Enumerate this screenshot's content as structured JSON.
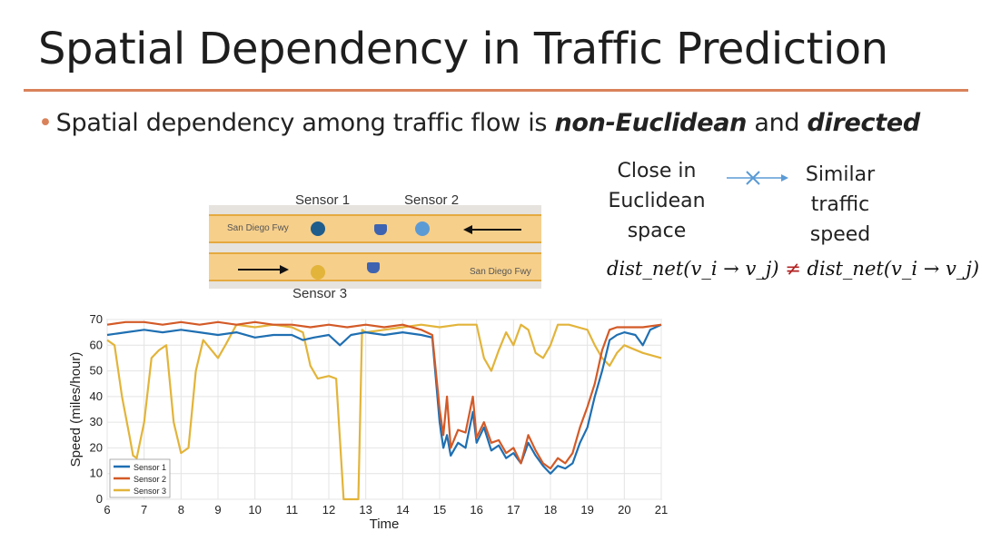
{
  "slide": {
    "title": "Spatial Dependency in Traffic Prediction",
    "bullet": {
      "prefix": "Spatial dependency among traffic flow  is ",
      "emph1": "non-Euclidean",
      "middle": " and ",
      "emph2": "directed"
    },
    "left_box": {
      "line1": "Close in",
      "line2": "Euclidean",
      "line3": "space"
    },
    "right_box": {
      "line1": "Similar",
      "line2": "traffic",
      "line3": "speed"
    },
    "formula": {
      "lhs": "dist_net(v_i → v_j)",
      "neq": "≠",
      "rhs": "dist_net(v_i → v_j)"
    }
  },
  "map": {
    "road_label": "San Diego Fwy",
    "sensor_labels": [
      "Sensor 1",
      "Sensor 2",
      "Sensor 3"
    ],
    "sensor_colors": [
      "#1f5d8c",
      "#5b9bd5",
      "#e2b43a"
    ]
  },
  "colors": {
    "accent_rule": "#d9825a",
    "road": "#f6cf8b",
    "arrow_blue": "#5b9bd5",
    "neq_red": "#b22222"
  },
  "chart_data": {
    "type": "line",
    "xlabel": "Time",
    "ylabel": "Speed (miles/hour)",
    "xlim": [
      6,
      21
    ],
    "ylim": [
      0,
      70
    ],
    "xticks": [
      6,
      7,
      8,
      9,
      10,
      11,
      12,
      13,
      14,
      15,
      16,
      17,
      18,
      19,
      20,
      21
    ],
    "yticks": [
      0,
      10,
      20,
      30,
      40,
      50,
      60,
      70
    ],
    "grid": true,
    "legend": "bottom-left",
    "series": [
      {
        "name": "Sensor 1",
        "color": "#1f6fb2",
        "points": [
          [
            6,
            64
          ],
          [
            6.5,
            65
          ],
          [
            7,
            66
          ],
          [
            7.5,
            65
          ],
          [
            8,
            66
          ],
          [
            8.5,
            65
          ],
          [
            9,
            64
          ],
          [
            9.5,
            65
          ],
          [
            10,
            63
          ],
          [
            10.5,
            64
          ],
          [
            11,
            64
          ],
          [
            11.3,
            62
          ],
          [
            11.6,
            63
          ],
          [
            12,
            64
          ],
          [
            12.3,
            60
          ],
          [
            12.6,
            64
          ],
          [
            13,
            65
          ],
          [
            13.5,
            64
          ],
          [
            14,
            65
          ],
          [
            14.5,
            64
          ],
          [
            14.8,
            63
          ],
          [
            15.0,
            30
          ],
          [
            15.1,
            20
          ],
          [
            15.2,
            25
          ],
          [
            15.3,
            17
          ],
          [
            15.5,
            22
          ],
          [
            15.7,
            20
          ],
          [
            15.9,
            34
          ],
          [
            16,
            22
          ],
          [
            16.2,
            28
          ],
          [
            16.4,
            19
          ],
          [
            16.6,
            21
          ],
          [
            16.8,
            16
          ],
          [
            17,
            18
          ],
          [
            17.2,
            14
          ],
          [
            17.4,
            22
          ],
          [
            17.6,
            17
          ],
          [
            17.8,
            13
          ],
          [
            18,
            10
          ],
          [
            18.2,
            13
          ],
          [
            18.4,
            12
          ],
          [
            18.6,
            14
          ],
          [
            18.8,
            22
          ],
          [
            19,
            28
          ],
          [
            19.2,
            40
          ],
          [
            19.4,
            50
          ],
          [
            19.6,
            62
          ],
          [
            19.8,
            64
          ],
          [
            20,
            65
          ],
          [
            20.3,
            64
          ],
          [
            20.5,
            60
          ],
          [
            20.7,
            66
          ],
          [
            21,
            68
          ]
        ]
      },
      {
        "name": "Sensor 2",
        "color": "#d35a27",
        "points": [
          [
            6,
            68
          ],
          [
            6.5,
            69
          ],
          [
            7,
            69
          ],
          [
            7.5,
            68
          ],
          [
            8,
            69
          ],
          [
            8.5,
            68
          ],
          [
            9,
            69
          ],
          [
            9.5,
            68
          ],
          [
            10,
            69
          ],
          [
            10.5,
            68
          ],
          [
            11,
            68
          ],
          [
            11.5,
            67
          ],
          [
            12,
            68
          ],
          [
            12.5,
            67
          ],
          [
            13,
            68
          ],
          [
            13.5,
            67
          ],
          [
            14,
            68
          ],
          [
            14.5,
            66
          ],
          [
            14.8,
            64
          ],
          [
            15.0,
            35
          ],
          [
            15.1,
            25
          ],
          [
            15.2,
            40
          ],
          [
            15.3,
            20
          ],
          [
            15.5,
            27
          ],
          [
            15.7,
            26
          ],
          [
            15.9,
            40
          ],
          [
            16,
            24
          ],
          [
            16.2,
            30
          ],
          [
            16.4,
            22
          ],
          [
            16.6,
            23
          ],
          [
            16.8,
            18
          ],
          [
            17,
            20
          ],
          [
            17.2,
            14
          ],
          [
            17.4,
            25
          ],
          [
            17.6,
            19
          ],
          [
            17.8,
            14
          ],
          [
            18,
            12
          ],
          [
            18.2,
            16
          ],
          [
            18.4,
            14
          ],
          [
            18.6,
            18
          ],
          [
            18.8,
            28
          ],
          [
            19,
            36
          ],
          [
            19.2,
            45
          ],
          [
            19.4,
            58
          ],
          [
            19.6,
            66
          ],
          [
            19.8,
            67
          ],
          [
            20,
            67
          ],
          [
            20.5,
            67
          ],
          [
            21,
            68
          ]
        ]
      },
      {
        "name": "Sensor 3",
        "color": "#e2b43a",
        "points": [
          [
            6,
            62
          ],
          [
            6.2,
            60
          ],
          [
            6.4,
            40
          ],
          [
            6.6,
            25
          ],
          [
            6.7,
            17
          ],
          [
            6.8,
            16
          ],
          [
            7,
            30
          ],
          [
            7.2,
            55
          ],
          [
            7.4,
            58
          ],
          [
            7.6,
            60
          ],
          [
            7.8,
            30
          ],
          [
            8,
            18
          ],
          [
            8.2,
            20
          ],
          [
            8.4,
            50
          ],
          [
            8.6,
            62
          ],
          [
            9,
            55
          ],
          [
            9.2,
            60
          ],
          [
            9.5,
            68
          ],
          [
            10,
            67
          ],
          [
            10.5,
            68
          ],
          [
            11,
            67
          ],
          [
            11.3,
            65
          ],
          [
            11.5,
            52
          ],
          [
            11.7,
            47
          ],
          [
            12,
            48
          ],
          [
            12.2,
            47
          ],
          [
            12.4,
            0
          ],
          [
            12.6,
            0
          ],
          [
            12.8,
            0
          ],
          [
            12.9,
            66
          ],
          [
            13,
            65
          ],
          [
            13.5,
            66
          ],
          [
            14,
            67
          ],
          [
            14.5,
            68
          ],
          [
            15,
            67
          ],
          [
            15.5,
            68
          ],
          [
            16,
            68
          ],
          [
            16.2,
            55
          ],
          [
            16.4,
            50
          ],
          [
            16.6,
            58
          ],
          [
            16.8,
            65
          ],
          [
            17,
            60
          ],
          [
            17.2,
            68
          ],
          [
            17.4,
            66
          ],
          [
            17.6,
            57
          ],
          [
            17.8,
            55
          ],
          [
            18,
            60
          ],
          [
            18.2,
            68
          ],
          [
            18.5,
            68
          ],
          [
            19,
            66
          ],
          [
            19.2,
            60
          ],
          [
            19.4,
            55
          ],
          [
            19.6,
            52
          ],
          [
            19.8,
            57
          ],
          [
            20,
            60
          ],
          [
            20.5,
            57
          ],
          [
            21,
            55
          ]
        ]
      }
    ]
  }
}
